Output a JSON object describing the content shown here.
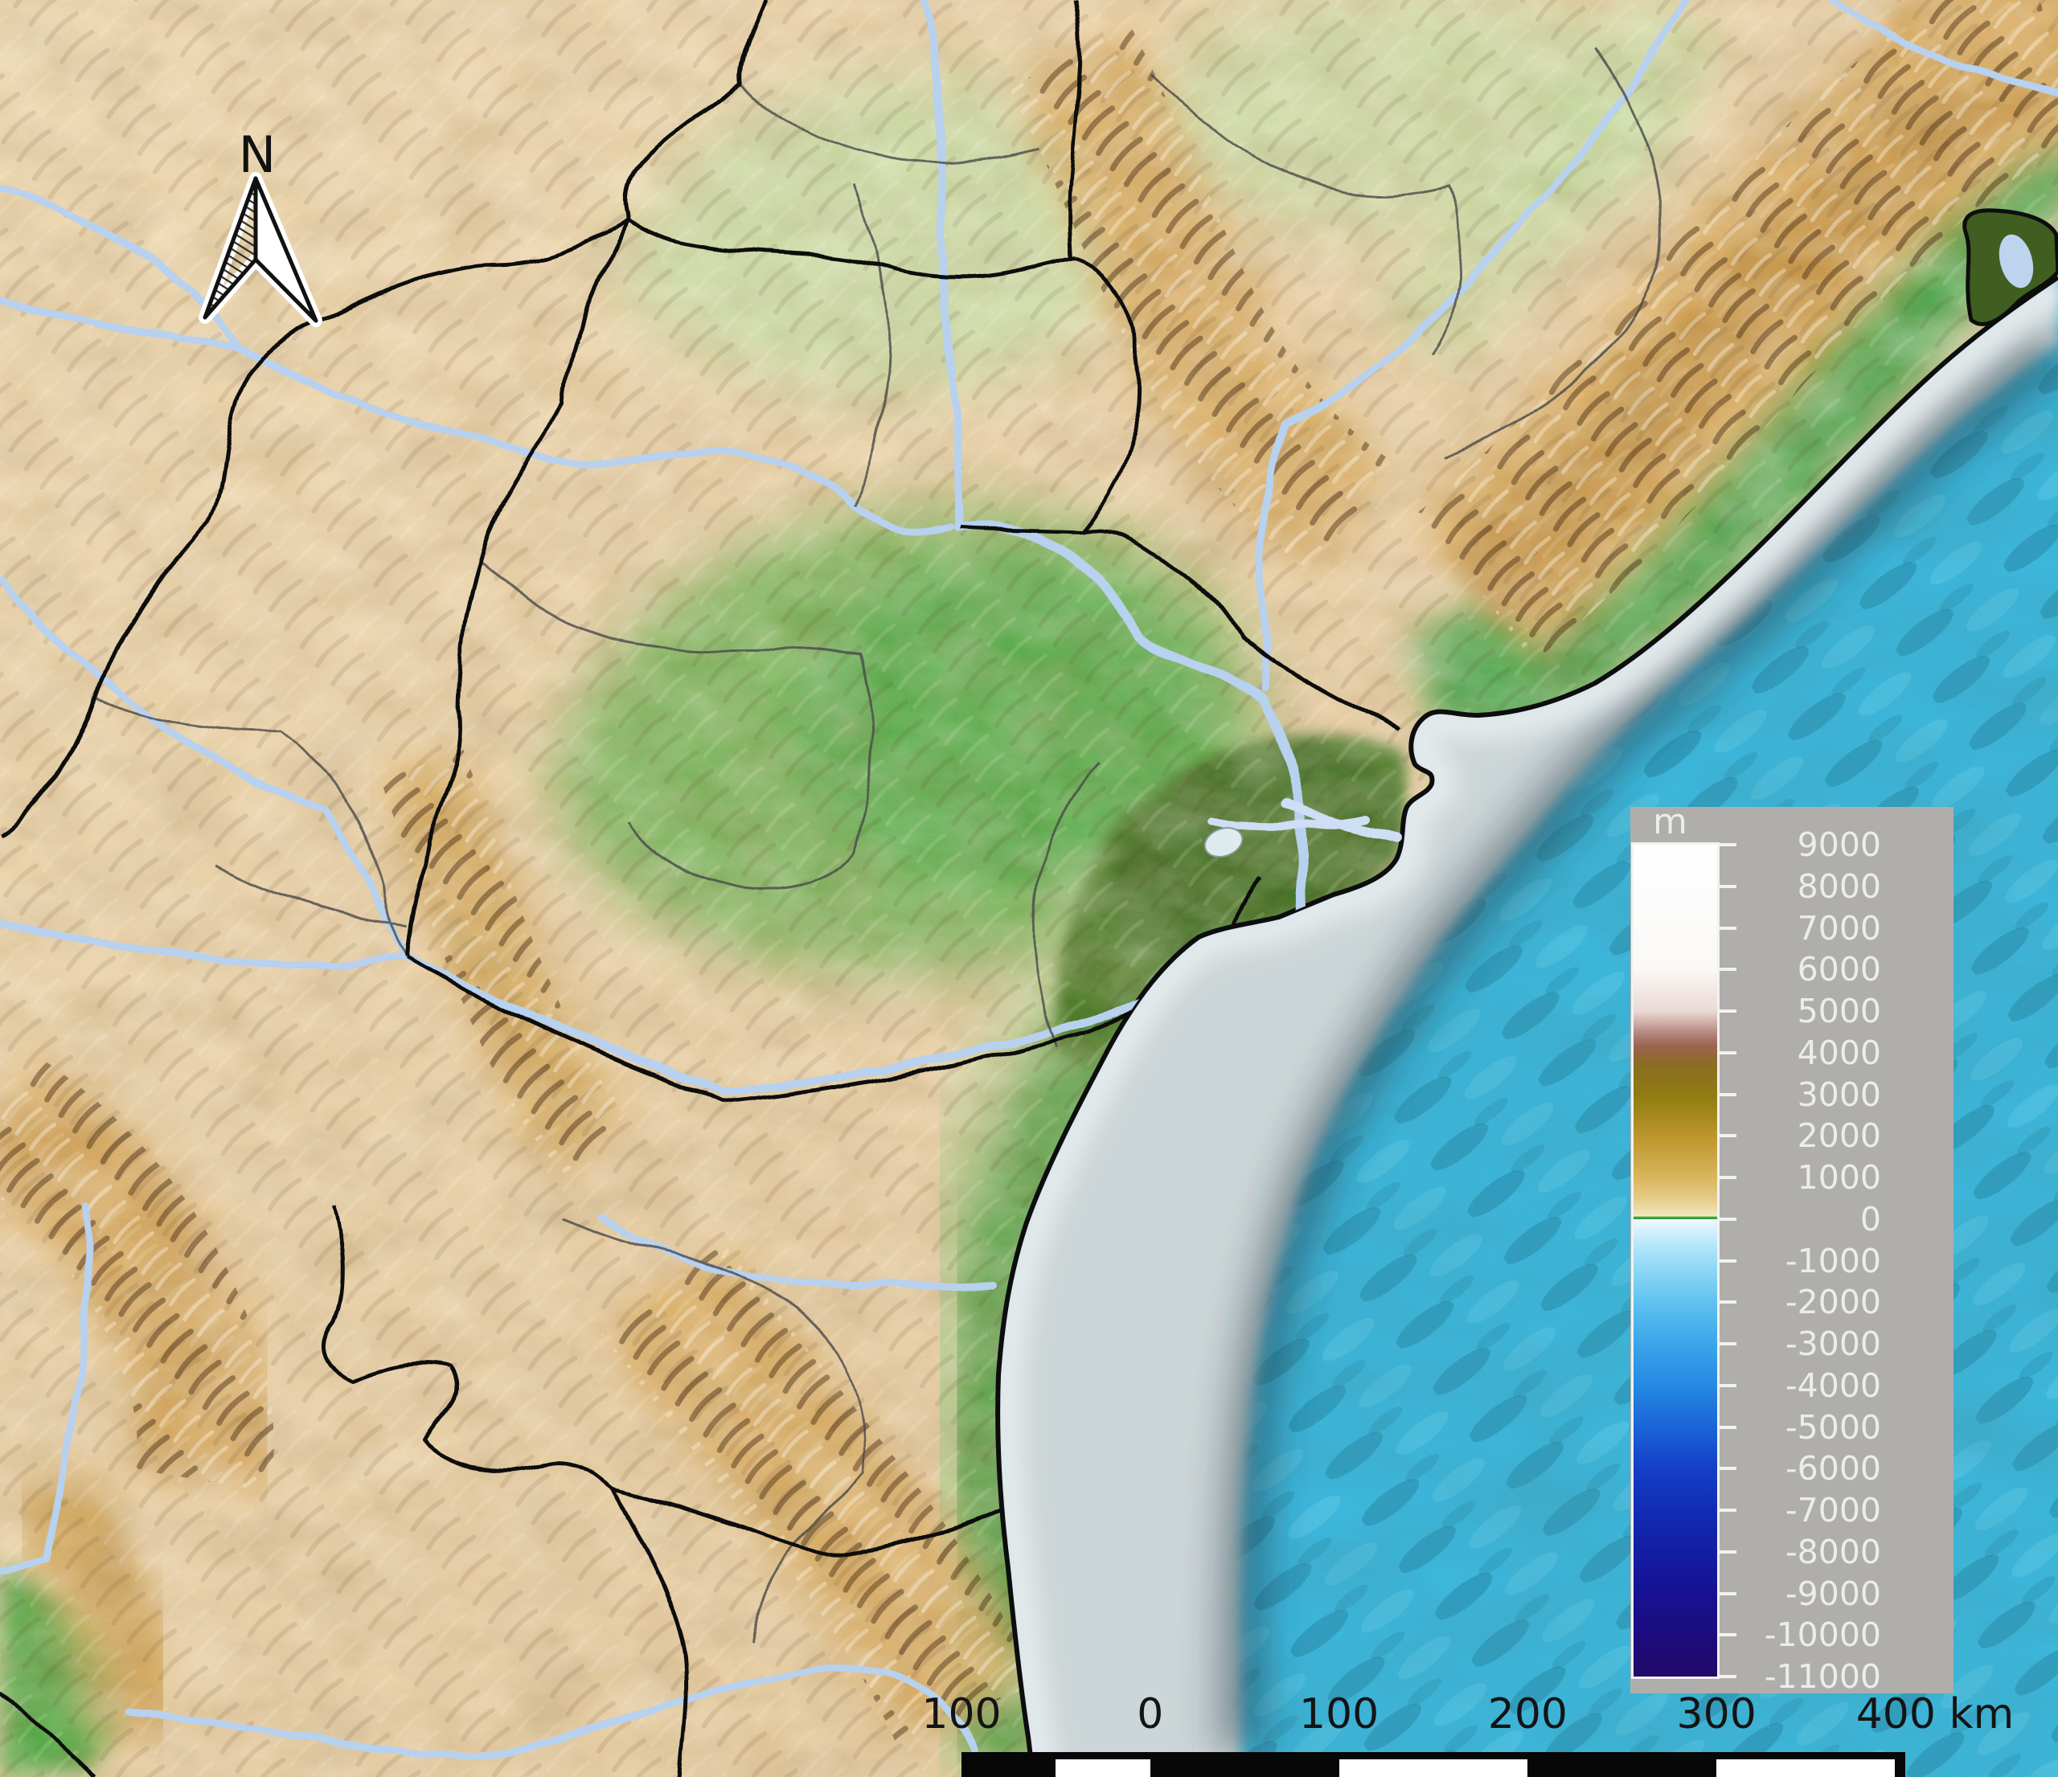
{
  "map": {
    "north_arrow_label": "N",
    "kind": "shaded-relief elevation and bathymetry map of a coastal region with state and district boundaries, rivers and a delta",
    "colors": {
      "ocean": "#3db6da",
      "shelf": "#ccd5d7",
      "coast_glow": "#e9eef0",
      "land_light": "#efdcb6",
      "land": "#e5cba1",
      "mountain": "#d8ab62",
      "mountain_core": "#c9994e",
      "lowland_green": "#6ab053",
      "lowland_pale": "#cadda7",
      "coast_green": "#4aa64d",
      "delta_green": "#4d7d2b",
      "river": "#b7d1ef",
      "river_delta": "#cedef4",
      "boundary": "#0d0d0d",
      "district": "#4a4a4a",
      "lagoon_forest": "#3f5e20",
      "lagoon_water": "#bcd4ee",
      "lake": "#e6f1f7",
      "north_arrow": "#111111",
      "legend_panel": "#b0aeab",
      "legend_text": "#ececec",
      "legend_tick": "#f2f2f2",
      "scale_text": "#141414",
      "scale_bar": "#070707",
      "scale_seg": "#ffffff"
    }
  },
  "legend": {
    "unit_label": "m",
    "tick_labels": [
      "9000",
      "8000",
      "7000",
      "6000",
      "5000",
      "4000",
      "3000",
      "2000",
      "1000",
      "0",
      "-1000",
      "-2000",
      "-3000",
      "-4000",
      "-5000",
      "-6000",
      "-7000",
      "-8000",
      "-9000",
      "-10000",
      "-11000"
    ],
    "colorbar_stops": [
      [
        0.0,
        "#ffffff"
      ],
      [
        0.15,
        "#fbf9f7"
      ],
      [
        0.2,
        "#ead9d3"
      ],
      [
        0.228,
        "#b2827b"
      ],
      [
        0.242,
        "#9c6450"
      ],
      [
        0.262,
        "#8c6b25"
      ],
      [
        0.3,
        "#8e7c12"
      ],
      [
        0.33,
        "#a98b20"
      ],
      [
        0.355,
        "#c09830"
      ],
      [
        0.4,
        "#d9b55c"
      ],
      [
        0.425,
        "#e6cb88"
      ],
      [
        0.443,
        "#f0e2b2"
      ],
      [
        0.4468,
        "#f4ecca"
      ],
      [
        0.4472,
        "#46aa41"
      ],
      [
        0.45,
        "#2f9c35"
      ],
      [
        0.4504,
        "#eef9fe"
      ],
      [
        0.48,
        "#b7e7fa"
      ],
      [
        0.5,
        "#9bdcf8"
      ],
      [
        0.55,
        "#5fc2f0"
      ],
      [
        0.6,
        "#3aa5ea"
      ],
      [
        0.65,
        "#2589e2"
      ],
      [
        0.7,
        "#1a64d8"
      ],
      [
        0.75,
        "#143fc6"
      ],
      [
        0.8,
        "#112cb4"
      ],
      [
        0.85,
        "#141ea4"
      ],
      [
        0.9,
        "#171192"
      ],
      [
        0.95,
        "#1c0c7e"
      ],
      [
        1.0,
        "#220969"
      ]
    ]
  },
  "scale_bar": {
    "labels": [
      {
        "text": "100",
        "km": -100
      },
      {
        "text": "0",
        "km": 0
      },
      {
        "text": "100",
        "km": 100
      },
      {
        "text": "200",
        "km": 200
      },
      {
        "text": "300",
        "km": 300
      },
      {
        "text": "400 km",
        "km": 400
      }
    ],
    "white_segments_km": [
      [
        -50,
        0
      ],
      [
        100,
        200
      ],
      [
        300,
        400
      ]
    ]
  }
}
